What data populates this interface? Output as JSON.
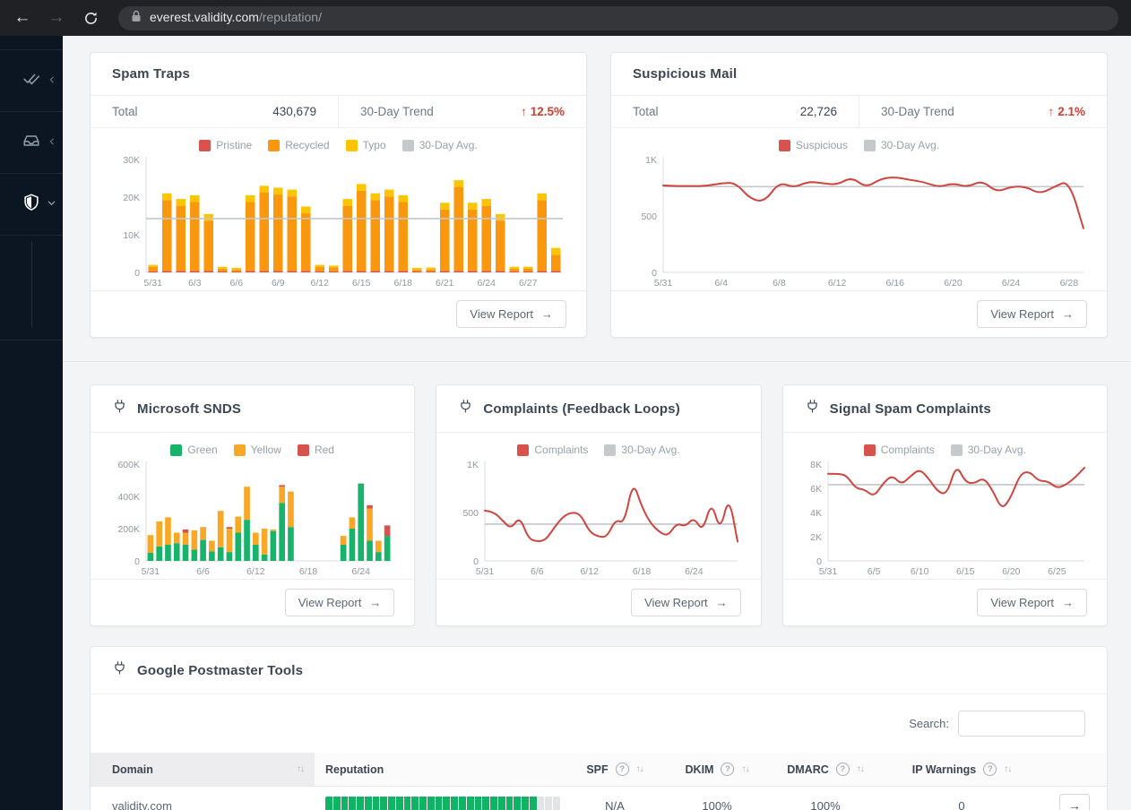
{
  "browser": {
    "url_host": "everest.validity.com",
    "url_path": "/reputation/",
    "back_icon": "←",
    "forward_icon": "→"
  },
  "colors": {
    "pristine_red": "#d9534e",
    "recycled_orange": "#f9980f",
    "typo_yellow": "#fdc500",
    "snds_green": "#17b36a",
    "avg_gray": "#c3c7cb",
    "line_red": "#d0453e",
    "trend_red": "#d23f31",
    "reputation_green": "#10b364"
  },
  "cards": {
    "spam_traps": {
      "title": "Spam Traps",
      "total_label": "Total",
      "total_value": "430,679",
      "trend_label": "30-Day Trend",
      "trend_arrow": "↑",
      "trend_value": "12.5%",
      "view_report": "View Report",
      "view_report_arrow": "→"
    },
    "suspicious_mail": {
      "title": "Suspicious Mail",
      "total_label": "Total",
      "total_value": "22,726",
      "trend_label": "30-Day Trend",
      "trend_arrow": "↑",
      "trend_value": "2.1%",
      "view_report": "View Report",
      "view_report_arrow": "→"
    },
    "microsoft_snds": {
      "title": "Microsoft SNDS",
      "view_report": "View Report",
      "view_report_arrow": "→"
    },
    "complaints_fbl": {
      "title": "Complaints (Feedback Loops)",
      "view_report": "View Report",
      "view_report_arrow": "→"
    },
    "signal_spam": {
      "title": "Signal Spam Complaints",
      "view_report": "View Report",
      "view_report_arrow": "→"
    },
    "google_postmaster": {
      "title": "Google Postmaster Tools",
      "search_label": "Search:"
    }
  },
  "chart_data": [
    {
      "id": "spam-traps",
      "type": "bar",
      "stacked": true,
      "title": "Spam Traps daily volume",
      "ylim": [
        0,
        30
      ],
      "unit": "thousands",
      "yticks": [
        {
          "v": 0,
          "label": "0"
        },
        {
          "v": 10,
          "label": "10K"
        },
        {
          "v": 20,
          "label": "20K"
        },
        {
          "v": 30,
          "label": "30K"
        }
      ],
      "xtick_every": 3,
      "avg": 14.3,
      "legend": [
        {
          "label": "Pristine",
          "color": "#d9534e"
        },
        {
          "label": "Recycled",
          "color": "#f9980f"
        },
        {
          "label": "Typo",
          "color": "#fdc500"
        },
        {
          "label": "30-Day Avg.",
          "color": "#c6c9cc"
        }
      ],
      "categories": [
        "5/31",
        "6/1",
        "6/2",
        "6/3",
        "6/4",
        "6/5",
        "6/6",
        "6/7",
        "6/8",
        "6/9",
        "6/10",
        "6/11",
        "6/12",
        "6/13",
        "6/14",
        "6/15",
        "6/16",
        "6/17",
        "6/18",
        "6/19",
        "6/20",
        "6/21",
        "6/22",
        "6/23",
        "6/24",
        "6/25",
        "6/26",
        "6/27",
        "6/28",
        "6/29"
      ],
      "series": [
        {
          "name": "Pristine",
          "color": "#d9534e",
          "values": [
            0.25,
            0.4,
            0.4,
            0.4,
            0.4,
            0.25,
            0.25,
            0.4,
            0.4,
            0.4,
            0.4,
            0.4,
            0.25,
            0.25,
            0.4,
            0.4,
            0.4,
            0.4,
            0.4,
            0.25,
            0.25,
            0.4,
            0.4,
            0.4,
            0.4,
            0.4,
            0.25,
            0.25,
            0.4,
            0.4
          ]
        },
        {
          "name": "Recycled",
          "color": "#f9980f",
          "values": [
            1.25,
            18.8,
            17.3,
            18.3,
            13.3,
            0.75,
            0.45,
            18.3,
            20.8,
            20.3,
            19.8,
            15.3,
            1.25,
            1.05,
            17.3,
            21.3,
            18.8,
            19.8,
            18.3,
            0.45,
            0.55,
            16.3,
            22.3,
            16.3,
            17.3,
            13.3,
            0.75,
            0.75,
            18.8,
            4.3
          ]
        },
        {
          "name": "Typo",
          "color": "#fdc500",
          "values": [
            0.5,
            1.8,
            1.8,
            1.8,
            1.8,
            0.5,
            0.5,
            1.8,
            1.8,
            1.8,
            1.8,
            1.8,
            0.5,
            0.5,
            1.8,
            1.8,
            1.8,
            1.8,
            1.8,
            0.5,
            0.5,
            1.8,
            1.8,
            1.8,
            1.8,
            1.8,
            0.5,
            0.5,
            1.8,
            1.8
          ]
        }
      ]
    },
    {
      "id": "suspicious-mail",
      "type": "line",
      "title": "Suspicious Mail daily volume",
      "ylim": [
        0,
        1000
      ],
      "yticks": [
        {
          "v": 0,
          "label": "0"
        },
        {
          "v": 500,
          "label": "500"
        },
        {
          "v": 1000,
          "label": "1K"
        }
      ],
      "xtick_every": 4,
      "avg": 760,
      "color": "#d0453e",
      "legend": [
        {
          "label": "Suspicious",
          "color": "#d9534e"
        },
        {
          "label": "30-Day Avg.",
          "color": "#c6c9cc"
        }
      ],
      "categories": [
        "5/31",
        "6/1",
        "6/2",
        "6/3",
        "6/4",
        "6/5",
        "6/6",
        "6/7",
        "6/8",
        "6/9",
        "6/10",
        "6/11",
        "6/12",
        "6/13",
        "6/14",
        "6/15",
        "6/16",
        "6/17",
        "6/18",
        "6/19",
        "6/20",
        "6/21",
        "6/22",
        "6/23",
        "6/24",
        "6/25",
        "6/26",
        "6/27",
        "6/28",
        "6/29"
      ],
      "values": [
        770,
        765,
        765,
        765,
        790,
        795,
        650,
        625,
        800,
        750,
        805,
        790,
        775,
        845,
        750,
        830,
        845,
        820,
        800,
        755,
        790,
        755,
        815,
        710,
        760,
        760,
        695,
        760,
        815,
        390
      ]
    },
    {
      "id": "microsoft-snds",
      "type": "bar",
      "stacked": true,
      "title": "Microsoft SNDS daily volume",
      "ylim": [
        0,
        600
      ],
      "unit": "thousands",
      "yticks": [
        {
          "v": 0,
          "label": "0"
        },
        {
          "v": 200,
          "label": "200K"
        },
        {
          "v": 400,
          "label": "400K"
        },
        {
          "v": 600,
          "label": "600K"
        }
      ],
      "xtick_every": 6,
      "legend": [
        {
          "label": "Green",
          "color": "#17b36a"
        },
        {
          "label": "Yellow",
          "color": "#f9a825"
        },
        {
          "label": "Red",
          "color": "#d9534e"
        }
      ],
      "categories": [
        "5/31",
        "6/1",
        "6/2",
        "6/3",
        "6/4",
        "6/5",
        "6/6",
        "6/7",
        "6/8",
        "6/9",
        "6/10",
        "6/11",
        "6/12",
        "6/13",
        "6/14",
        "6/15",
        "6/16",
        "6/17",
        "6/18",
        "6/19",
        "6/20",
        "6/21",
        "6/22",
        "6/23",
        "6/24",
        "6/25",
        "6/26",
        "6/27"
      ],
      "series": [
        {
          "name": "Green",
          "color": "#17b36a",
          "values": [
            50,
            90,
            100,
            110,
            100,
            70,
            130,
            60,
            85,
            55,
            175,
            255,
            100,
            40,
            185,
            360,
            210,
            0,
            0,
            0,
            0,
            0,
            100,
            200,
            480,
            125,
            55,
            155
          ]
        },
        {
          "name": "Yellow",
          "color": "#f9a825",
          "values": [
            110,
            155,
            170,
            65,
            75,
            120,
            80,
            65,
            225,
            145,
            100,
            205,
            75,
            160,
            10,
            100,
            220,
            0,
            0,
            0,
            0,
            0,
            55,
            70,
            0,
            200,
            70,
            0
          ]
        },
        {
          "name": "Red",
          "color": "#d9534e",
          "values": [
            0,
            0,
            0,
            0,
            20,
            0,
            0,
            0,
            0,
            10,
            0,
            0,
            0,
            0,
            0,
            10,
            0,
            0,
            0,
            0,
            0,
            0,
            0,
            0,
            0,
            20,
            0,
            65
          ]
        }
      ]
    },
    {
      "id": "complaints-fbl",
      "type": "line",
      "title": "Complaints (Feedback Loops) daily volume",
      "ylim": [
        0,
        1000
      ],
      "yticks": [
        {
          "v": 0,
          "label": "0"
        },
        {
          "v": 500,
          "label": "500"
        },
        {
          "v": 1000,
          "label": "1K"
        }
      ],
      "xtick_every": 6,
      "avg": 380,
      "color": "#d0453e",
      "legend": [
        {
          "label": "Complaints",
          "color": "#d9534e"
        },
        {
          "label": "30-Day Avg.",
          "color": "#c6c9cc"
        }
      ],
      "categories": [
        "5/31",
        "6/1",
        "6/2",
        "6/3",
        "6/4",
        "6/5",
        "6/6",
        "6/7",
        "6/8",
        "6/9",
        "6/10",
        "6/11",
        "6/12",
        "6/13",
        "6/14",
        "6/15",
        "6/16",
        "6/17",
        "6/18",
        "6/19",
        "6/20",
        "6/21",
        "6/22",
        "6/23",
        "6/24",
        "6/25",
        "6/26",
        "6/27",
        "6/28",
        "6/29"
      ],
      "values": [
        520,
        510,
        420,
        330,
        460,
        230,
        200,
        215,
        350,
        460,
        505,
        480,
        300,
        250,
        245,
        430,
        385,
        830,
        560,
        390,
        300,
        255,
        390,
        355,
        450,
        300,
        620,
        300,
        680,
        200
      ]
    },
    {
      "id": "signal-spam",
      "type": "line",
      "title": "Signal Spam Complaints daily volume",
      "ylim": [
        0,
        8
      ],
      "unit": "thousands",
      "yticks": [
        {
          "v": 0,
          "label": "0"
        },
        {
          "v": 2,
          "label": "2K"
        },
        {
          "v": 4,
          "label": "4K"
        },
        {
          "v": 6,
          "label": "6K"
        },
        {
          "v": 8,
          "label": "8K"
        }
      ],
      "xtick_every": 5,
      "avg": 6.3,
      "color": "#d0453e",
      "legend": [
        {
          "label": "Complaints",
          "color": "#d9534e"
        },
        {
          "label": "30-Day Avg.",
          "color": "#c6c9cc"
        }
      ],
      "categories": [
        "5/31",
        "6/1",
        "6/2",
        "6/3",
        "6/4",
        "6/5",
        "6/6",
        "6/7",
        "6/8",
        "6/9",
        "6/10",
        "6/11",
        "6/12",
        "6/13",
        "6/14",
        "6/15",
        "6/16",
        "6/17",
        "6/18",
        "6/19",
        "6/20",
        "6/21",
        "6/22",
        "6/23",
        "6/24",
        "6/25",
        "6/26",
        "6/27",
        "6/28"
      ],
      "values": [
        7.2,
        7.2,
        7.1,
        6.0,
        5.9,
        5.3,
        6.4,
        7.1,
        6.3,
        7.0,
        7.6,
        6.8,
        5.7,
        5.5,
        8.0,
        6.5,
        6.4,
        6.9,
        5.8,
        4.2,
        5.3,
        7.2,
        7.4,
        6.6,
        6.6,
        6.0,
        6.3,
        6.9,
        7.7
      ]
    }
  ],
  "table": {
    "columns": [
      {
        "label": "Domain",
        "sortable": true,
        "help": false
      },
      {
        "label": "Reputation",
        "sortable": false,
        "help": false
      },
      {
        "label": "SPF",
        "sortable": true,
        "help": true
      },
      {
        "label": "DKIM",
        "sortable": true,
        "help": true
      },
      {
        "label": "DMARC",
        "sortable": true,
        "help": true
      },
      {
        "label": "IP Warnings",
        "sortable": true,
        "help": true
      }
    ],
    "sort_icon": "↑↓",
    "help_icon": "?",
    "rows": [
      {
        "domain": "validity.com",
        "reputation_segments": 30,
        "reputation_green": 27,
        "spf": "N/A",
        "dkim": "100%",
        "dmarc": "100%",
        "ip_warnings": "0",
        "action_arrow": "→"
      }
    ]
  }
}
